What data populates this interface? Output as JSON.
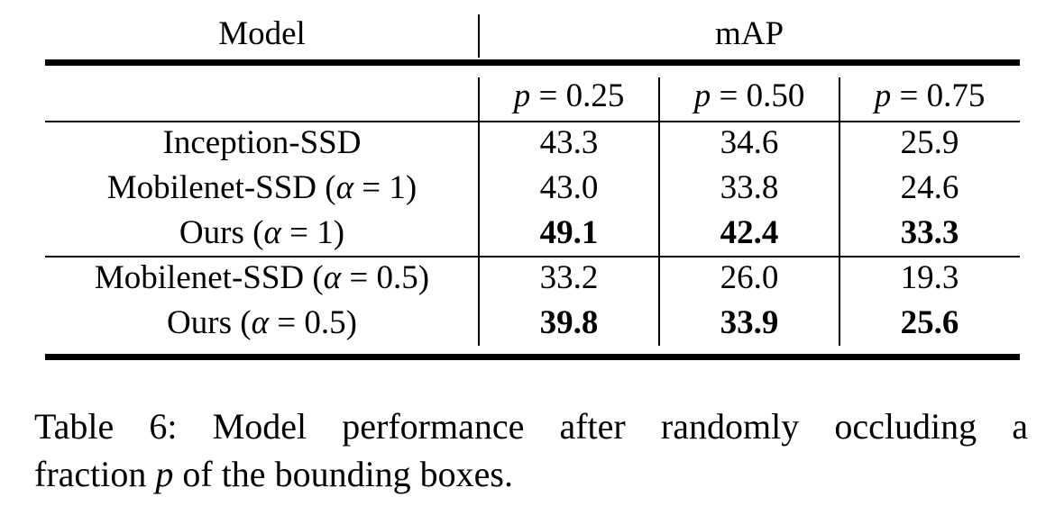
{
  "table": {
    "header": {
      "model": "Model",
      "metric": "mAP",
      "p_columns": [
        {
          "var": "p",
          "eq": " = ",
          "val": "0.25"
        },
        {
          "var": "p",
          "eq": " = ",
          "val": "0.50"
        },
        {
          "var": "p",
          "eq": " = ",
          "val": "0.75"
        }
      ]
    },
    "rows": [
      {
        "model": "Inception-SSD",
        "values": [
          "43.3",
          "34.6",
          "25.9"
        ]
      },
      {
        "model": "Mobilenet-SSD (",
        "alpha": "α",
        "alpha_rest": " = 1)",
        "values": [
          "43.0",
          "33.8",
          "24.6"
        ]
      },
      {
        "model": "Ours (",
        "alpha": "α",
        "alpha_rest": " = 1)",
        "values": [
          "49.1",
          "42.4",
          "33.3"
        ]
      },
      {
        "model": "Mobilenet-SSD (",
        "alpha": "α",
        "alpha_rest": " = 0.5)",
        "values": [
          "33.2",
          "26.0",
          "19.3"
        ]
      },
      {
        "model": "Ours (",
        "alpha": "α",
        "alpha_rest": " = 0.5)",
        "values": [
          "39.8",
          "33.9",
          "25.6"
        ]
      }
    ]
  },
  "caption": {
    "words_line1": [
      "Table",
      "6:",
      "Model",
      "performance",
      "after",
      "randomly",
      "occluding",
      "a"
    ],
    "line2_before": "fraction ",
    "line2_var": "p",
    "line2_after": " of the bounding boxes."
  }
}
